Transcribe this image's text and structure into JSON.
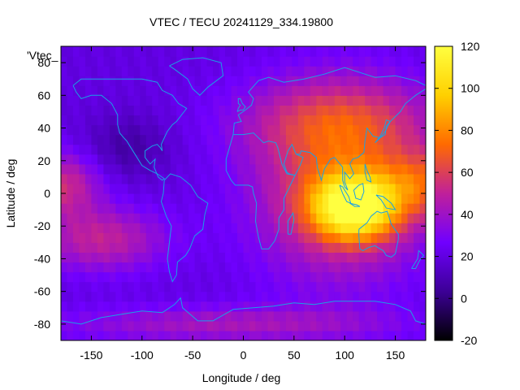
{
  "chart_data": {
    "type": "heatmap",
    "title": "VTEC / TECU 20241129_334.19800",
    "legend_label": "'Vtec_",
    "xlabel": "Longitude / deg",
    "ylabel": "Latitude / deg",
    "xlim": [
      -180,
      180
    ],
    "ylim": [
      -90,
      90
    ],
    "xticks": [
      -150,
      -100,
      -50,
      0,
      50,
      100,
      150
    ],
    "yticks": [
      -80,
      -60,
      -40,
      -20,
      0,
      20,
      40,
      60,
      80
    ],
    "colorbar": {
      "range": [
        -20,
        120
      ],
      "ticks": [
        -20,
        0,
        20,
        40,
        60,
        80,
        100,
        120
      ],
      "palette": [
        "#000000",
        "#3c0096",
        "#7000ff",
        "#c0209a",
        "#ff6a00",
        "#ffd000",
        "#ffff40"
      ]
    },
    "grid": false,
    "coastline_color": "#1aa0e6",
    "peak": {
      "lon": 110,
      "lat": -8,
      "vtec": 120
    }
  }
}
